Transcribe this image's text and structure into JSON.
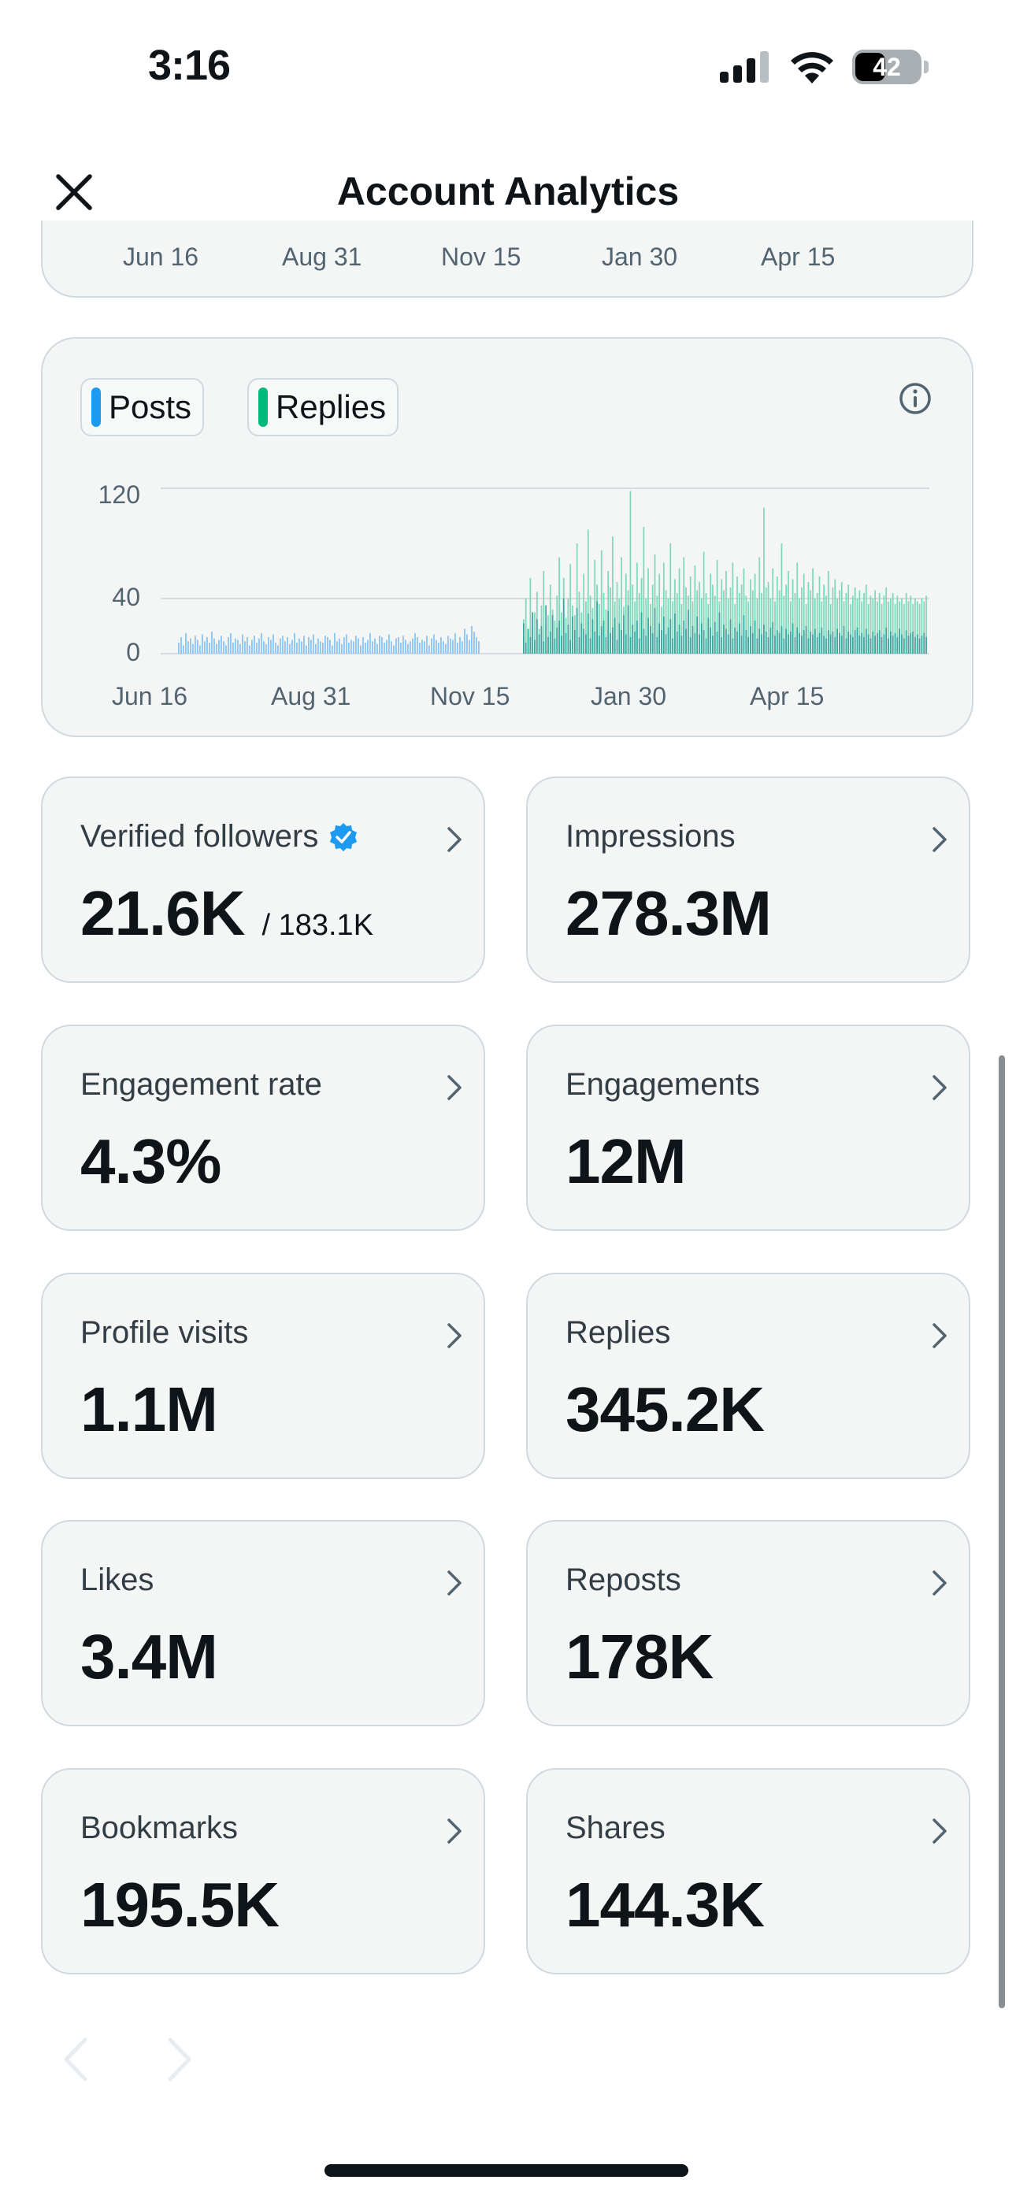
{
  "status_bar": {
    "time": "3:16",
    "battery": "42"
  },
  "header": {
    "title": "Account Analytics",
    "close_icon": "close-icon"
  },
  "top_card": {
    "x_labels": [
      "Jun 16",
      "Aug 31",
      "Nov 15",
      "Jan 30",
      "Apr 15"
    ]
  },
  "chart_card": {
    "legend": [
      {
        "label": "Posts",
        "color": "#1d9bf0"
      },
      {
        "label": "Replies",
        "color": "#00ba7c"
      }
    ],
    "info_icon": "info-icon"
  },
  "chart_data": {
    "type": "bar",
    "x_tick_labels": [
      "Jun 16",
      "Aug 31",
      "Nov 15",
      "Jan 30",
      "Apr 15"
    ],
    "y_tick_labels": [
      "120",
      "40",
      "0"
    ],
    "ylim": [
      0,
      120
    ],
    "grid": true,
    "series": [
      {
        "name": "Posts",
        "color": "#8ec5f3"
      },
      {
        "name": "Replies",
        "color": "#7fd9b8"
      }
    ],
    "posts_segment_1": [
      8,
      12,
      6,
      15,
      9,
      11,
      7,
      13,
      10,
      6,
      14,
      9,
      12,
      8,
      16,
      11,
      7,
      10,
      13,
      9,
      6,
      12,
      15,
      8,
      11,
      10,
      7,
      14,
      9,
      12,
      6,
      10,
      13,
      8,
      11,
      15,
      9,
      7,
      12,
      10,
      14,
      8,
      6,
      11,
      13,
      9,
      12,
      7,
      10,
      15,
      8,
      11,
      9,
      13,
      6,
      12,
      10,
      14,
      7,
      11,
      9,
      8,
      13,
      12,
      10,
      6,
      15,
      9,
      11,
      7,
      12,
      14,
      8,
      10,
      9,
      13,
      11,
      6,
      12,
      8,
      10,
      15,
      9,
      11,
      7,
      13,
      12,
      8,
      10,
      14,
      9,
      6,
      11,
      12,
      8,
      13,
      10,
      7,
      9,
      11,
      15,
      12,
      8,
      10,
      9,
      13,
      6,
      11,
      14,
      10,
      8,
      12,
      9,
      7,
      13,
      11,
      10,
      15,
      8,
      12,
      9,
      18,
      14,
      10,
      20,
      16,
      12,
      9
    ],
    "posts_segment_2": [
      22,
      8,
      18,
      12,
      30,
      10,
      25,
      14,
      20,
      9,
      35,
      12,
      16,
      28,
      11,
      19,
      24,
      13,
      40,
      15,
      21,
      10,
      27,
      17,
      33,
      12,
      22,
      18,
      14,
      29,
      11,
      25,
      16,
      38,
      13,
      20,
      24,
      12,
      31,
      15,
      19,
      26,
      10,
      22,
      17,
      28,
      14,
      35,
      12,
      21,
      16,
      24,
      11,
      30,
      18,
      13,
      26,
      20,
      15,
      33,
      12,
      22,
      17,
      27,
      14,
      19,
      25,
      11,
      29,
      16,
      21,
      13,
      24,
      18,
      32,
      12,
      20,
      15,
      27,
      14,
      22,
      17,
      11,
      26,
      19,
      13,
      23,
      16,
      30,
      12,
      21,
      18,
      14,
      25,
      11,
      19,
      16,
      22,
      13,
      28,
      17,
      12,
      20,
      15,
      24,
      11,
      18,
      14,
      21,
      16,
      12,
      19,
      23,
      13,
      17,
      15,
      20,
      11,
      18,
      14,
      16,
      22,
      12,
      19,
      15,
      13,
      17,
      20,
      11,
      16,
      14,
      18,
      12,
      15,
      19,
      13,
      11,
      17,
      14,
      16,
      12,
      18,
      15,
      13,
      20,
      11,
      16,
      14,
      12,
      17,
      19,
      13,
      15,
      12,
      18,
      14,
      11,
      16,
      13,
      15,
      17,
      12,
      14,
      19,
      11,
      16,
      13,
      15,
      12,
      18,
      14,
      11,
      17,
      13,
      15,
      16,
      12,
      14,
      11,
      13,
      15,
      12
    ],
    "replies_segment_2": [
      25,
      40,
      15,
      55,
      20,
      30,
      45,
      18,
      35,
      60,
      22,
      28,
      50,
      32,
      24,
      42,
      70,
      30,
      55,
      26,
      40,
      65,
      35,
      28,
      80,
      45,
      30,
      58,
      38,
      90,
      42,
      33,
      68,
      50,
      36,
      75,
      44,
      32,
      60,
      48,
      85,
      38,
      52,
      40,
      70,
      34,
      58,
      46,
      118,
      50,
      38,
      66,
      44,
      55,
      92,
      40,
      62,
      36,
      50,
      72,
      42,
      58,
      34,
      66,
      46,
      40,
      80,
      38,
      54,
      44,
      62,
      36,
      70,
      48,
      42,
      56,
      38,
      64,
      46,
      52,
      40,
      74,
      44,
      36,
      58,
      50,
      42,
      68,
      38,
      54,
      46,
      60,
      40,
      48,
      66,
      36,
      56,
      44,
      50,
      62,
      42,
      38,
      54,
      46,
      58,
      40,
      70,
      44,
      106,
      48,
      52,
      40,
      62,
      38,
      56,
      46,
      80,
      42,
      50,
      60,
      38,
      54,
      44,
      66,
      40,
      48,
      58,
      36,
      52,
      46,
      62,
      40,
      44,
      56,
      38,
      50,
      42,
      60,
      36,
      48,
      54,
      40,
      46,
      52,
      38,
      44,
      50,
      36,
      42,
      48,
      40,
      46,
      38,
      44,
      50,
      36,
      42,
      40,
      46,
      38,
      44,
      36,
      42,
      48,
      38,
      40,
      44,
      36,
      42,
      38,
      40,
      36,
      44,
      38,
      42,
      36,
      40,
      38,
      36,
      40,
      38,
      42
    ]
  },
  "metrics": [
    {
      "label": "Verified followers",
      "value": "21.6K",
      "sub": "/ 183.1K",
      "verified": true
    },
    {
      "label": "Impressions",
      "value": "278.3M"
    },
    {
      "label": "Engagement rate",
      "value": "4.3%"
    },
    {
      "label": "Engagements",
      "value": "12M"
    },
    {
      "label": "Profile visits",
      "value": "1.1M"
    },
    {
      "label": "Replies",
      "value": "345.2K"
    },
    {
      "label": "Likes",
      "value": "3.4M"
    },
    {
      "label": "Reposts",
      "value": "178K"
    },
    {
      "label": "Bookmarks",
      "value": "195.5K"
    },
    {
      "label": "Shares",
      "value": "144.3K"
    }
  ],
  "colors": {
    "card_bg": "#f4f6f6",
    "border": "#cfd9de",
    "posts": "#1d9bf0",
    "replies": "#00ba7c",
    "verified": "#1d9bf0"
  }
}
